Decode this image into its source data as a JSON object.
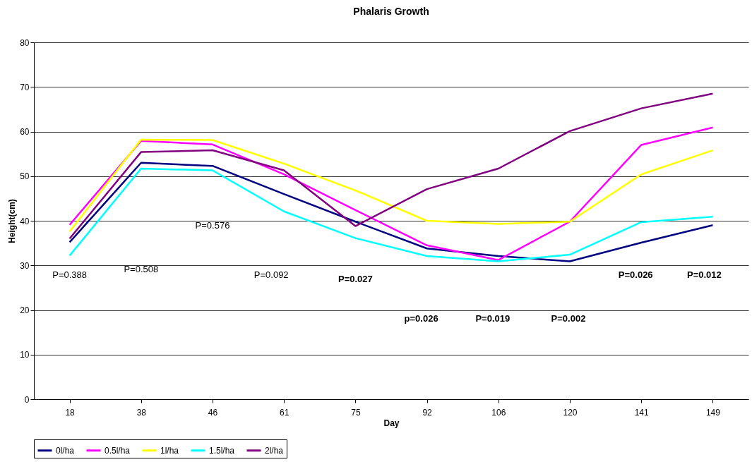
{
  "chart_data": {
    "type": "line",
    "title": "Phalaris Growth",
    "xlabel": "Day",
    "ylabel": "Height(cm)",
    "categories": [
      "18",
      "38",
      "46",
      "61",
      "75",
      "92",
      "106",
      "120",
      "141",
      "149"
    ],
    "series": [
      {
        "name": "0l/ha",
        "color": "#000080",
        "values": [
          35.2,
          53.0,
          52.3,
          46.0,
          39.8,
          33.8,
          32.1,
          30.9,
          35.1,
          39.0
        ]
      },
      {
        "name": "0.5l/ha",
        "color": "#ff00ff",
        "values": [
          39.1,
          57.9,
          57.1,
          50.4,
          42.4,
          34.5,
          31.2,
          39.8,
          57.0,
          60.9
        ]
      },
      {
        "name": "1l/ha",
        "color": "#ffff00",
        "values": [
          37.6,
          58.2,
          58.1,
          52.8,
          46.8,
          40.0,
          39.3,
          39.8,
          50.4,
          55.8
        ]
      },
      {
        "name": "1.5l/ha",
        "color": "#00ffff",
        "values": [
          32.2,
          51.7,
          51.3,
          42.1,
          36.1,
          32.1,
          30.9,
          32.4,
          39.7,
          40.9
        ]
      },
      {
        "name": "2l/ha",
        "color": "#800080",
        "values": [
          36.0,
          55.4,
          55.8,
          51.3,
          38.8,
          47.1,
          51.7,
          60.1,
          65.2,
          68.5
        ]
      }
    ],
    "ylim": [
      0,
      80
    ],
    "yticks": [
      0,
      10,
      20,
      30,
      40,
      50,
      60,
      70,
      80
    ],
    "grid": "y",
    "legend": "bottom",
    "marker": "none",
    "line_style": "solid",
    "annotations": [
      "P=0.388",
      "P=0.508",
      "P=0.576",
      "P=0.092",
      "P=0.027",
      "p=0.026",
      "P=0.019",
      "P=0.002",
      "P=0.026",
      "P=0.012"
    ]
  }
}
